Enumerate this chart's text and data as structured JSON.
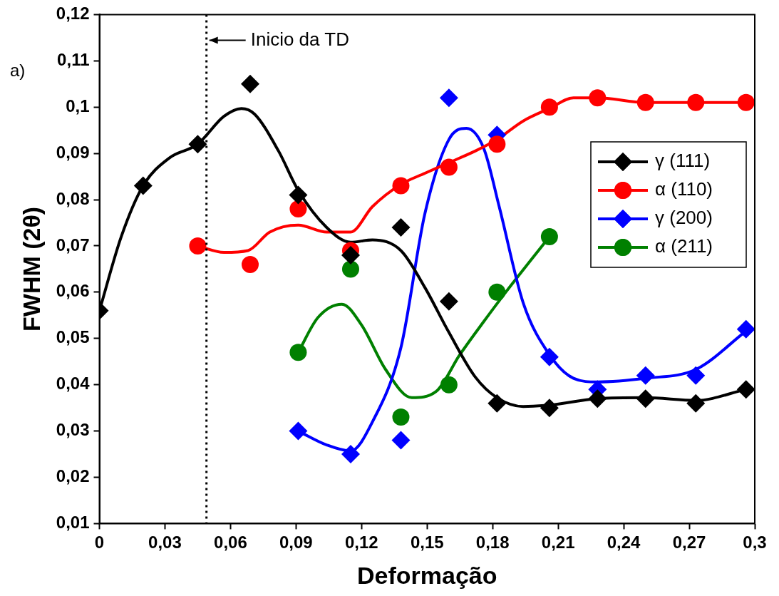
{
  "chart_data": {
    "type": "scatter",
    "xlabel": "Deformação",
    "ylabel": "FWHM (2θ)",
    "xlim": [
      0,
      0.3
    ],
    "ylim": [
      0.01,
      0.12
    ],
    "xticks": [
      {
        "value": 0,
        "label": "0"
      },
      {
        "value": 0.03,
        "label": "0,03"
      },
      {
        "value": 0.06,
        "label": "0,06"
      },
      {
        "value": 0.09,
        "label": "0,09"
      },
      {
        "value": 0.12,
        "label": "0,12"
      },
      {
        "value": 0.15,
        "label": "0,15"
      },
      {
        "value": 0.18,
        "label": "0,18"
      },
      {
        "value": 0.21,
        "label": "0,21"
      },
      {
        "value": 0.24,
        "label": "0,24"
      },
      {
        "value": 0.27,
        "label": "0,27"
      },
      {
        "value": 0.3,
        "label": "0,3"
      }
    ],
    "yticks": [
      {
        "value": 0.01,
        "label": "0,01"
      },
      {
        "value": 0.02,
        "label": "0,02"
      },
      {
        "value": 0.03,
        "label": "0,03"
      },
      {
        "value": 0.04,
        "label": "0,04"
      },
      {
        "value": 0.05,
        "label": "0,05"
      },
      {
        "value": 0.06,
        "label": "0,06"
      },
      {
        "value": 0.07,
        "label": "0,07"
      },
      {
        "value": 0.08,
        "label": "0,08"
      },
      {
        "value": 0.09,
        "label": "0,09"
      },
      {
        "value": 0.1,
        "label": "0,1"
      },
      {
        "value": 0.11,
        "label": "0,11"
      },
      {
        "value": 0.12,
        "label": "0,12"
      }
    ],
    "grid": false,
    "legend": "right",
    "ref_lines": [
      {
        "axis": "x",
        "value": 0.049,
        "label": "Inicio da TD",
        "line_style": "dotted",
        "color": "#000000"
      }
    ],
    "annotations": [
      "a)"
    ],
    "series": [
      {
        "name": "γ (111)",
        "marker": "diamond",
        "color": "#000000",
        "x": [
          0,
          0.02,
          0.045,
          0.069,
          0.091,
          0.115,
          0.138,
          0.16,
          0.182,
          0.206,
          0.228,
          0.25,
          0.273,
          0.296
        ],
        "values": [
          0.056,
          0.083,
          0.092,
          0.105,
          0.081,
          0.068,
          0.074,
          0.058,
          0.036,
          0.035,
          0.037,
          0.037,
          0.036,
          0.039
        ]
      },
      {
        "type": "line",
        "marker": "none",
        "color": "#000000",
        "x": [
          0,
          0.01,
          0.02,
          0.032,
          0.045,
          0.057,
          0.065,
          0.071,
          0.082,
          0.091,
          0.104,
          0.115,
          0.125,
          0.138,
          0.149,
          0.16,
          0.172,
          0.182,
          0.194,
          0.206,
          0.228,
          0.25,
          0.273,
          0.296
        ],
        "values": [
          0.056,
          0.072,
          0.083,
          0.089,
          0.092,
          0.098,
          0.0997,
          0.0985,
          0.0905,
          0.082,
          0.074,
          0.0708,
          0.0713,
          0.069,
          0.061,
          0.0513,
          0.0417,
          0.0372,
          0.0353,
          0.0356,
          0.037,
          0.0372,
          0.0366,
          0.039
        ]
      },
      {
        "name": "α (110)",
        "marker": "circle",
        "color": "#ff0000",
        "x": [
          0.045,
          0.069,
          0.091,
          0.115,
          0.138,
          0.16,
          0.182,
          0.206,
          0.228,
          0.25,
          0.273,
          0.296
        ],
        "values": [
          0.07,
          0.066,
          0.078,
          0.069,
          0.083,
          0.087,
          0.092,
          0.1,
          0.102,
          0.101,
          0.101,
          0.101
        ]
      },
      {
        "type": "line",
        "marker": "none",
        "color": "#ff0000",
        "x": [
          0.045,
          0.057,
          0.068,
          0.078,
          0.091,
          0.104,
          0.115,
          0.125,
          0.138,
          0.149,
          0.16,
          0.172,
          0.182,
          0.194,
          0.206,
          0.217,
          0.228,
          0.25,
          0.296
        ],
        "values": [
          0.07,
          0.0686,
          0.069,
          0.073,
          0.0745,
          0.073,
          0.073,
          0.0785,
          0.0833,
          0.0857,
          0.088,
          0.0905,
          0.093,
          0.097,
          0.0997,
          0.102,
          0.102,
          0.101,
          0.101
        ]
      },
      {
        "name": "γ (200)",
        "marker": "diamond",
        "color": "#0000ff",
        "x": [
          0.091,
          0.115,
          0.138,
          0.16,
          0.182,
          0.206,
          0.228,
          0.25,
          0.273,
          0.296
        ],
        "values": [
          0.03,
          0.025,
          0.028,
          0.102,
          0.094,
          0.046,
          0.039,
          0.042,
          0.042,
          0.052
        ]
      },
      {
        "type": "line",
        "marker": "none",
        "color": "#0000ff",
        "x": [
          0.091,
          0.104,
          0.115,
          0.125,
          0.138,
          0.149,
          0.16,
          0.168,
          0.176,
          0.183,
          0.194,
          0.206,
          0.217,
          0.228,
          0.25,
          0.273,
          0.296
        ],
        "values": [
          0.03,
          0.027,
          0.0257,
          0.032,
          0.048,
          0.077,
          0.093,
          0.0954,
          0.091,
          0.0785,
          0.0577,
          0.0465,
          0.0414,
          0.0406,
          0.0414,
          0.0433,
          0.0516
        ]
      },
      {
        "name": "α (211)",
        "marker": "circle",
        "color": "#008000",
        "x": [
          0.091,
          0.115,
          0.138,
          0.16,
          0.182,
          0.206
        ],
        "values": [
          0.047,
          0.065,
          0.033,
          0.04,
          0.06,
          0.072
        ]
      },
      {
        "type": "line",
        "marker": "none",
        "color": "#008000",
        "x": [
          0.091,
          0.1,
          0.111,
          0.12,
          0.131,
          0.143,
          0.154,
          0.165,
          0.176,
          0.186,
          0.206
        ],
        "values": [
          0.047,
          0.0545,
          0.0574,
          0.0529,
          0.0433,
          0.0372,
          0.0385,
          0.0465,
          0.0537,
          0.06,
          0.072
        ]
      }
    ]
  }
}
